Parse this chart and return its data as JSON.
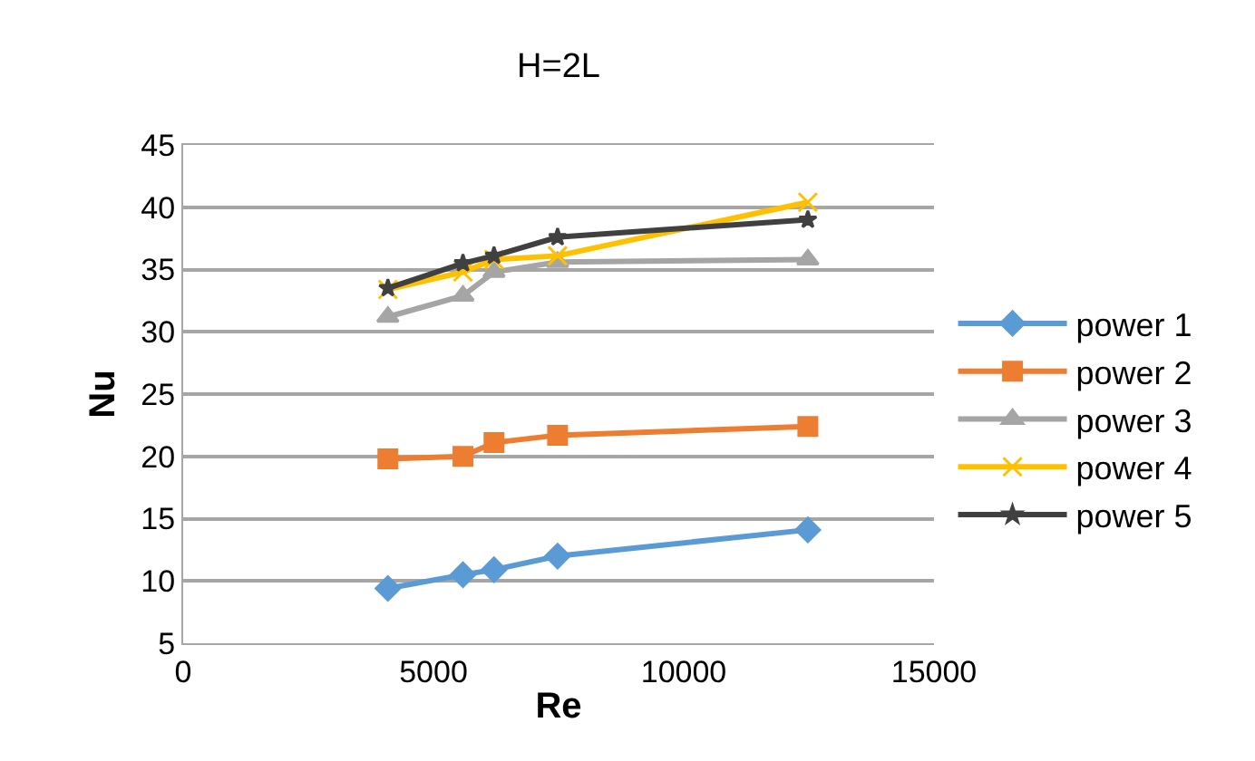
{
  "chart_data": {
    "type": "line",
    "title": "H=2L",
    "xlabel": "Re",
    "ylabel": "Nu",
    "x": [
      4090,
      5590,
      6210,
      7480,
      12480
    ],
    "xlim": [
      0,
      15000
    ],
    "xticks": [
      0,
      5000,
      10000,
      15000
    ],
    "ylim": [
      5,
      45
    ],
    "yticks": [
      5,
      10,
      15,
      20,
      25,
      30,
      35,
      40,
      45
    ],
    "grid": "y",
    "legend": "right",
    "series": [
      {
        "name": "power 1",
        "color": "#5b9bd5",
        "marker": "diamond",
        "values": [
          9.4,
          10.5,
          10.9,
          12.0,
          14.1
        ]
      },
      {
        "name": "power 2",
        "color": "#ed7d31",
        "marker": "square",
        "values": [
          19.8,
          20.0,
          21.1,
          21.7,
          22.4
        ]
      },
      {
        "name": "power 3",
        "color": "#a5a5a5",
        "marker": "triangle",
        "values": [
          31.2,
          32.9,
          34.8,
          35.6,
          35.8
        ]
      },
      {
        "name": "power 4",
        "color": "#ffc000",
        "marker": "cross",
        "values": [
          33.4,
          34.8,
          35.8,
          36.1,
          40.4
        ]
      },
      {
        "name": "power 5",
        "color": "#404040",
        "marker": "star",
        "values": [
          33.5,
          35.5,
          36.1,
          37.6,
          39.0
        ]
      }
    ]
  }
}
